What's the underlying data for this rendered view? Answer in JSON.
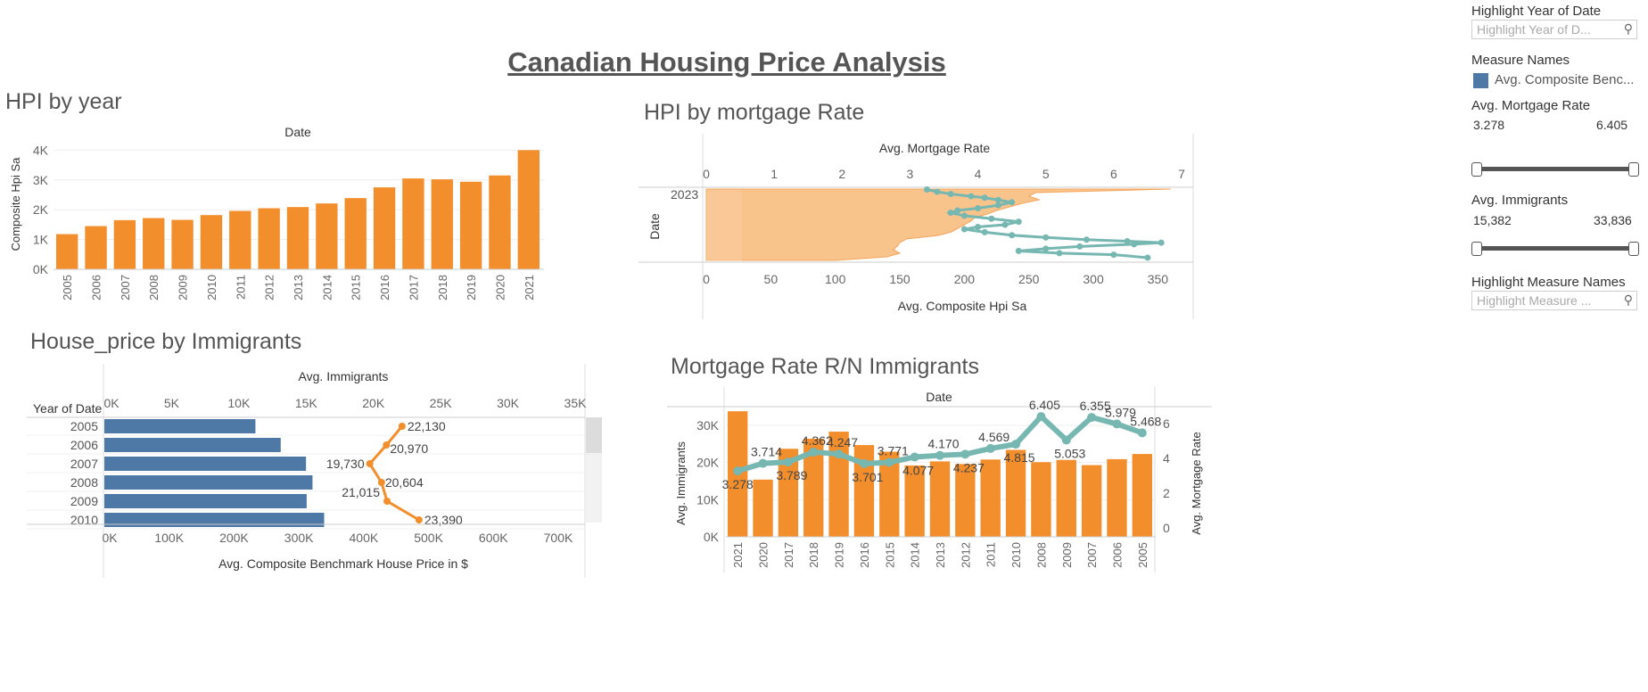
{
  "dashboard_title": "Canadian Housing Price Analysis",
  "filters": {
    "highlight_year": {
      "label": "Highlight Year of Date",
      "placeholder": "Highlight Year of D..."
    },
    "measure_names": {
      "label": "Measure Names",
      "legend_item": "Avg. Composite Benc..."
    },
    "mortgage_rate": {
      "label": "Avg. Mortgage Rate",
      "min": "3.278",
      "max": "6.405"
    },
    "immigrants": {
      "label": "Avg. Immigrants",
      "min": "15,382",
      "max": "33,836"
    },
    "highlight_measure": {
      "label": "Highlight Measure Names",
      "placeholder": "Highlight Measure ..."
    }
  },
  "colors": {
    "orange": "#f28e2b",
    "blue": "#4e79a7",
    "teal": "#76b7b2",
    "light_orange": "#f9c38c"
  },
  "chart_data": [
    {
      "id": "hpi_by_year",
      "type": "bar",
      "title": "HPI by year",
      "top_label": "Date",
      "ylabel": "Composite Hpi Sa",
      "categories": [
        "2005",
        "2006",
        "2007",
        "2008",
        "2009",
        "2010",
        "2011",
        "2012",
        "2013",
        "2014",
        "2015",
        "2016",
        "2017",
        "2018",
        "2019",
        "2020",
        "2021"
      ],
      "values": [
        1180,
        1450,
        1650,
        1720,
        1660,
        1820,
        1960,
        2050,
        2090,
        2210,
        2390,
        2750,
        3050,
        3020,
        2940,
        3150,
        4000
      ],
      "yticks": [
        "0K",
        "1K",
        "2K",
        "3K",
        "4K"
      ],
      "ylim": [
        0,
        4400
      ]
    },
    {
      "id": "hpi_by_mortgage_rate",
      "type": "area",
      "title": "HPI by mortgage Rate",
      "top_axis_label": "Avg. Mortgage Rate",
      "top_ticks": [
        "0",
        "1",
        "2",
        "3",
        "4",
        "5",
        "6",
        "7"
      ],
      "bottom_axis_label": "Avg. Composite Hpi Sa",
      "bottom_ticks": [
        "0",
        "50",
        "100",
        "150",
        "200",
        "250",
        "300",
        "350"
      ],
      "ylabel": "Date",
      "row_label": "2023",
      "hpi_profile": [
        360,
        255,
        250,
        258,
        245,
        235,
        225,
        218,
        208,
        205,
        200,
        195,
        190,
        180,
        155,
        150,
        148,
        145,
        150,
        140,
        100
      ],
      "mortgage_trace": [
        [
          3.25,
          3.4,
          3.6,
          3.9,
          4.1,
          4.3,
          4.5,
          4.3,
          4.0,
          3.7,
          3.6,
          3.8,
          4.2,
          4.6,
          4.4,
          4.0,
          3.8,
          4.1,
          4.5,
          5.0,
          5.6,
          6.2,
          6.7,
          6.3,
          5.5,
          5.0,
          4.6,
          5.2,
          6.0,
          6.5
        ],
        [
          0.03,
          0.06,
          0.09,
          0.12,
          0.14,
          0.17,
          0.2,
          0.24,
          0.28,
          0.31,
          0.34,
          0.38,
          0.42,
          0.46,
          0.5,
          0.53,
          0.56,
          0.6,
          0.64,
          0.67,
          0.7,
          0.72,
          0.74,
          0.76,
          0.79,
          0.82,
          0.85,
          0.88,
          0.9,
          0.94
        ]
      ]
    },
    {
      "id": "house_price_by_immigrants",
      "type": "bar",
      "title": "House_price by Immigrants",
      "row_header": "Year of Date",
      "categories": [
        "2005",
        "2006",
        "2007",
        "2008",
        "2009",
        "2010"
      ],
      "top_axis_label": "Avg. Immigrants",
      "top_ticks": [
        "0K",
        "5K",
        "10K",
        "15K",
        "20K",
        "25K",
        "30K",
        "35K"
      ],
      "bottom_axis_label": "Avg. Composite Benchmark House Price in $",
      "bottom_ticks": [
        "0K",
        "100K",
        "200K",
        "300K",
        "400K",
        "500K",
        "600K",
        "700K"
      ],
      "series": [
        {
          "name": "Avg. Composite Benchmark House Price in $",
          "values": [
            233000,
            272000,
            311000,
            321000,
            312000,
            339000
          ]
        },
        {
          "name": "Avg. Immigrants",
          "values": [
            22130,
            20970,
            19730,
            20604,
            21015,
            23390
          ]
        }
      ],
      "immigrant_labels": [
        "22,130",
        "20,970",
        "19,730",
        "20,604",
        "21,015",
        "23,390"
      ]
    },
    {
      "id": "mortgage_vs_immigrants",
      "type": "bar",
      "title": "Mortgage Rate R/N Immigrants",
      "top_label": "Date",
      "ylabel": "Avg. Immigrants",
      "y2label": "Avg. Mortgage Rate",
      "categories": [
        "2021",
        "2020",
        "2017",
        "2018",
        "2019",
        "2016",
        "2015",
        "2014",
        "2013",
        "2012",
        "2011",
        "2010",
        "2008",
        "2009",
        "2007",
        "2006",
        "2005"
      ],
      "yticks": [
        "0K",
        "10K",
        "20K",
        "30K"
      ],
      "y2ticks": [
        "0",
        "2",
        "4",
        "6"
      ],
      "series": [
        {
          "name": "Avg. Immigrants",
          "values": [
            33800,
            15400,
            23700,
            26400,
            28300,
            24700,
            22900,
            19200,
            20300,
            19600,
            20800,
            23400,
            20100,
            20700,
            19300,
            20900,
            22300
          ]
        },
        {
          "name": "Avg. Mortgage Rate",
          "values": [
            3.278,
            3.714,
            3.789,
            4.362,
            4.247,
            3.701,
            3.771,
            4.077,
            4.17,
            4.237,
            4.569,
            4.815,
            6.405,
            5.053,
            6.355,
            5.979,
            5.468
          ]
        }
      ],
      "rate_labels": [
        "3.278",
        "3.714",
        "3.789",
        "4.362",
        "4.247",
        "3.701",
        "3.771",
        "4.077",
        "4.170",
        "4.237",
        "4.569",
        "4.815",
        "6.405",
        "5.053",
        "6.355",
        "5.979",
        "5.468"
      ]
    }
  ]
}
